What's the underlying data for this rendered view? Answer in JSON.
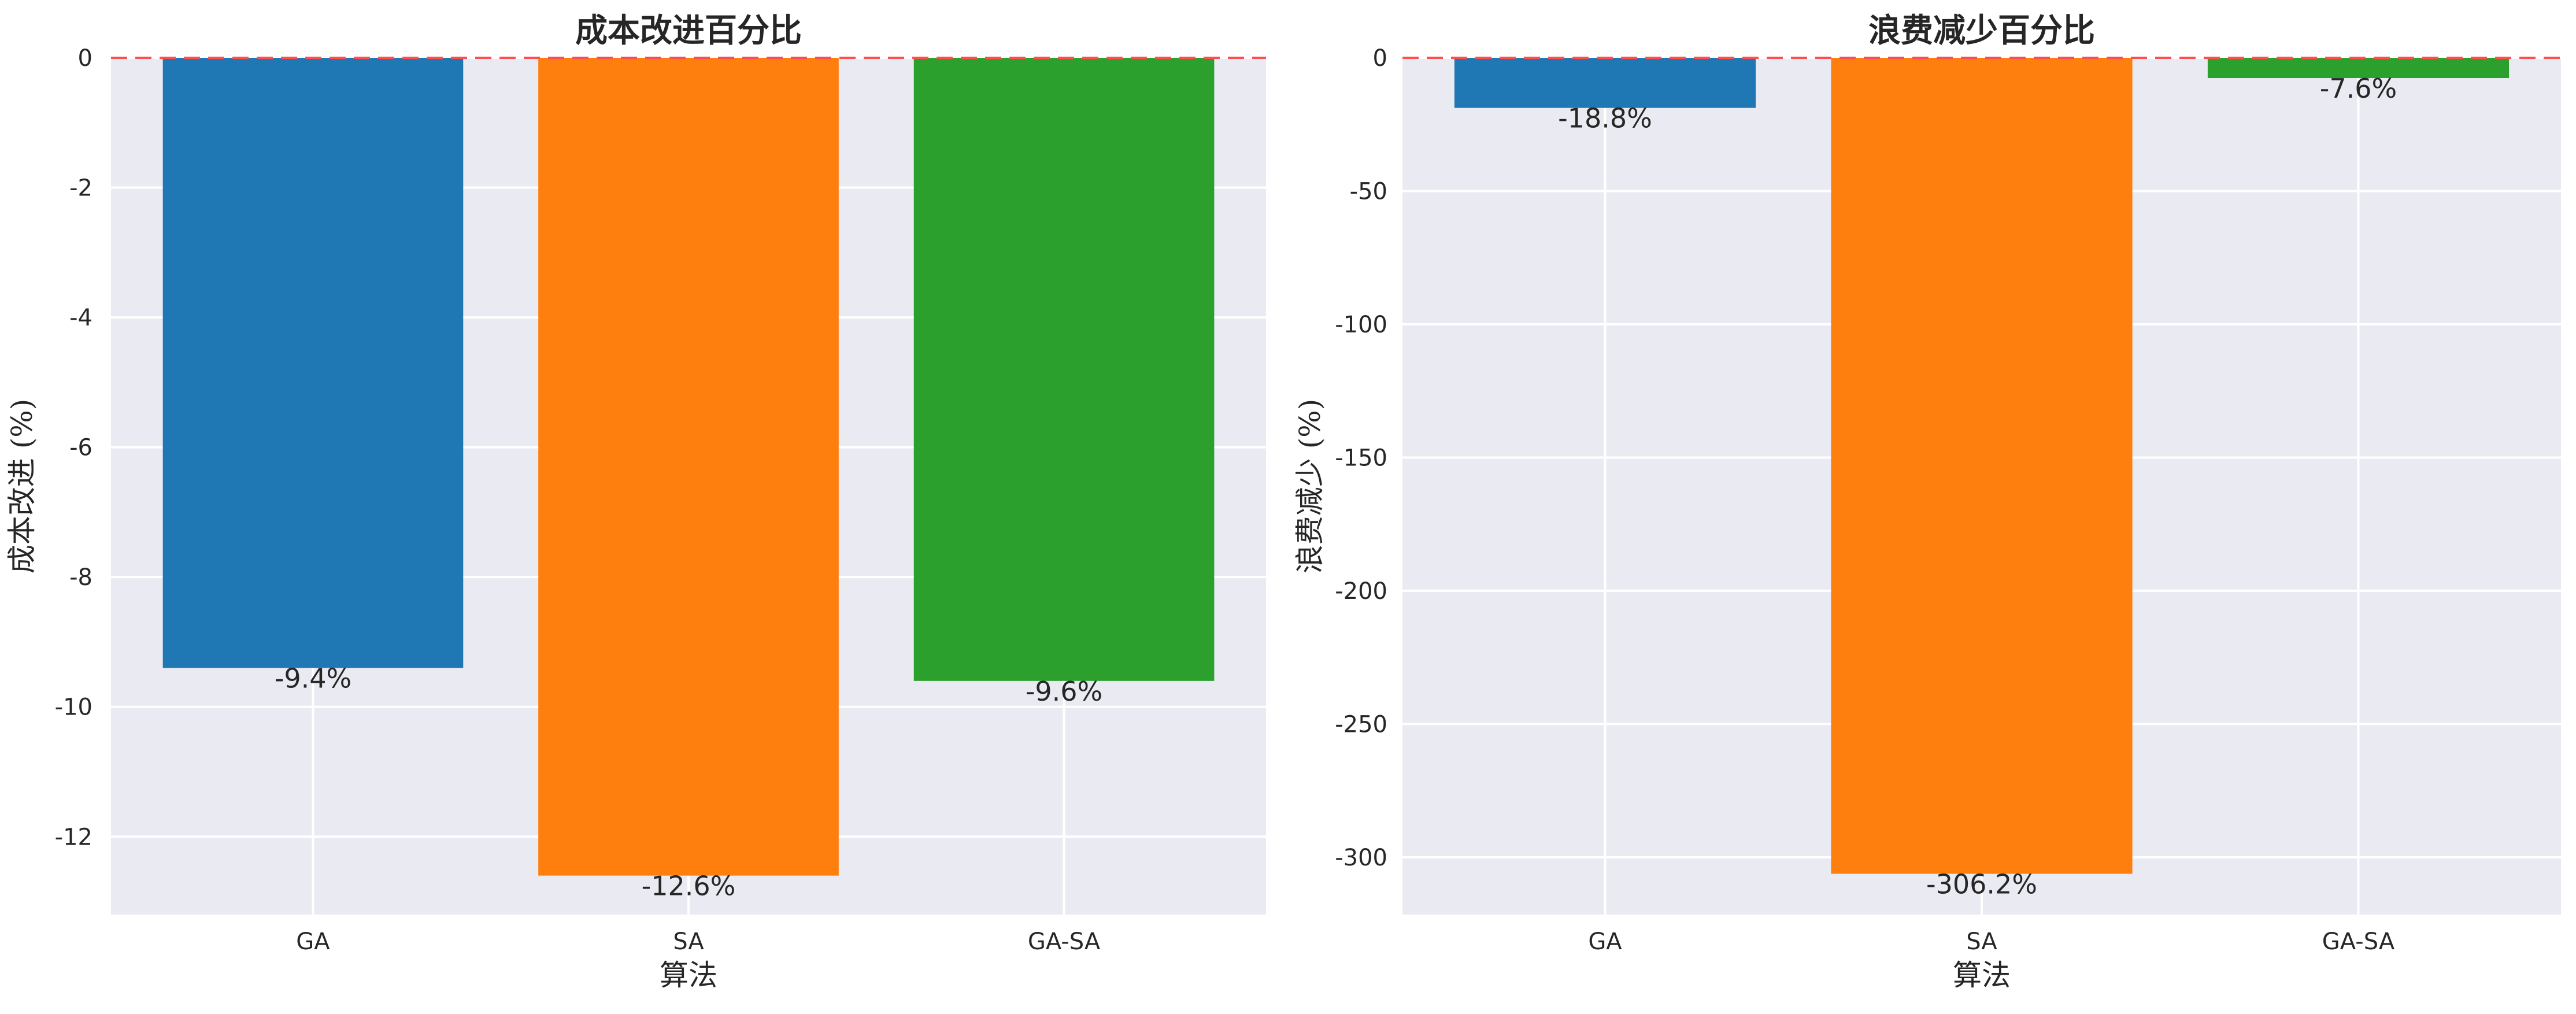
{
  "chart_data": [
    {
      "type": "bar",
      "title": "成本改进百分比",
      "xlabel": "算法",
      "ylabel": "成本改进 (%)",
      "categories": [
        "GA",
        "SA",
        "GA-SA"
      ],
      "values": [
        -9.4,
        -12.6,
        -9.6
      ],
      "data_labels": [
        "-9.4%",
        "-12.6%",
        "-9.6%"
      ],
      "colors": [
        "#1f77b4",
        "#ff7f0e",
        "#2ca02c"
      ],
      "ylim": [
        -13.2,
        0
      ],
      "yticks": [
        0,
        -2,
        -4,
        -6,
        -8,
        -10,
        -12
      ],
      "reference_line": {
        "y": 0,
        "style": "dashed",
        "color": "#ff4d4d"
      },
      "grid": true,
      "background": "#eaeaf2"
    },
    {
      "type": "bar",
      "title": "浪费减少百分比",
      "xlabel": "算法",
      "ylabel": "浪费减少 (%)",
      "categories": [
        "GA",
        "SA",
        "GA-SA"
      ],
      "values": [
        -18.8,
        -306.2,
        -7.6
      ],
      "data_labels": [
        "-18.8%",
        "-306.2%",
        "-7.6%"
      ],
      "colors": [
        "#1f77b4",
        "#ff7f0e",
        "#2ca02c"
      ],
      "ylim": [
        -321.5,
        0
      ],
      "yticks": [
        0,
        -50,
        -100,
        -150,
        -200,
        -250,
        -300
      ],
      "reference_line": {
        "y": 0,
        "style": "dashed",
        "color": "#ff4d4d"
      },
      "grid": true,
      "background": "#eaeaf2"
    }
  ]
}
